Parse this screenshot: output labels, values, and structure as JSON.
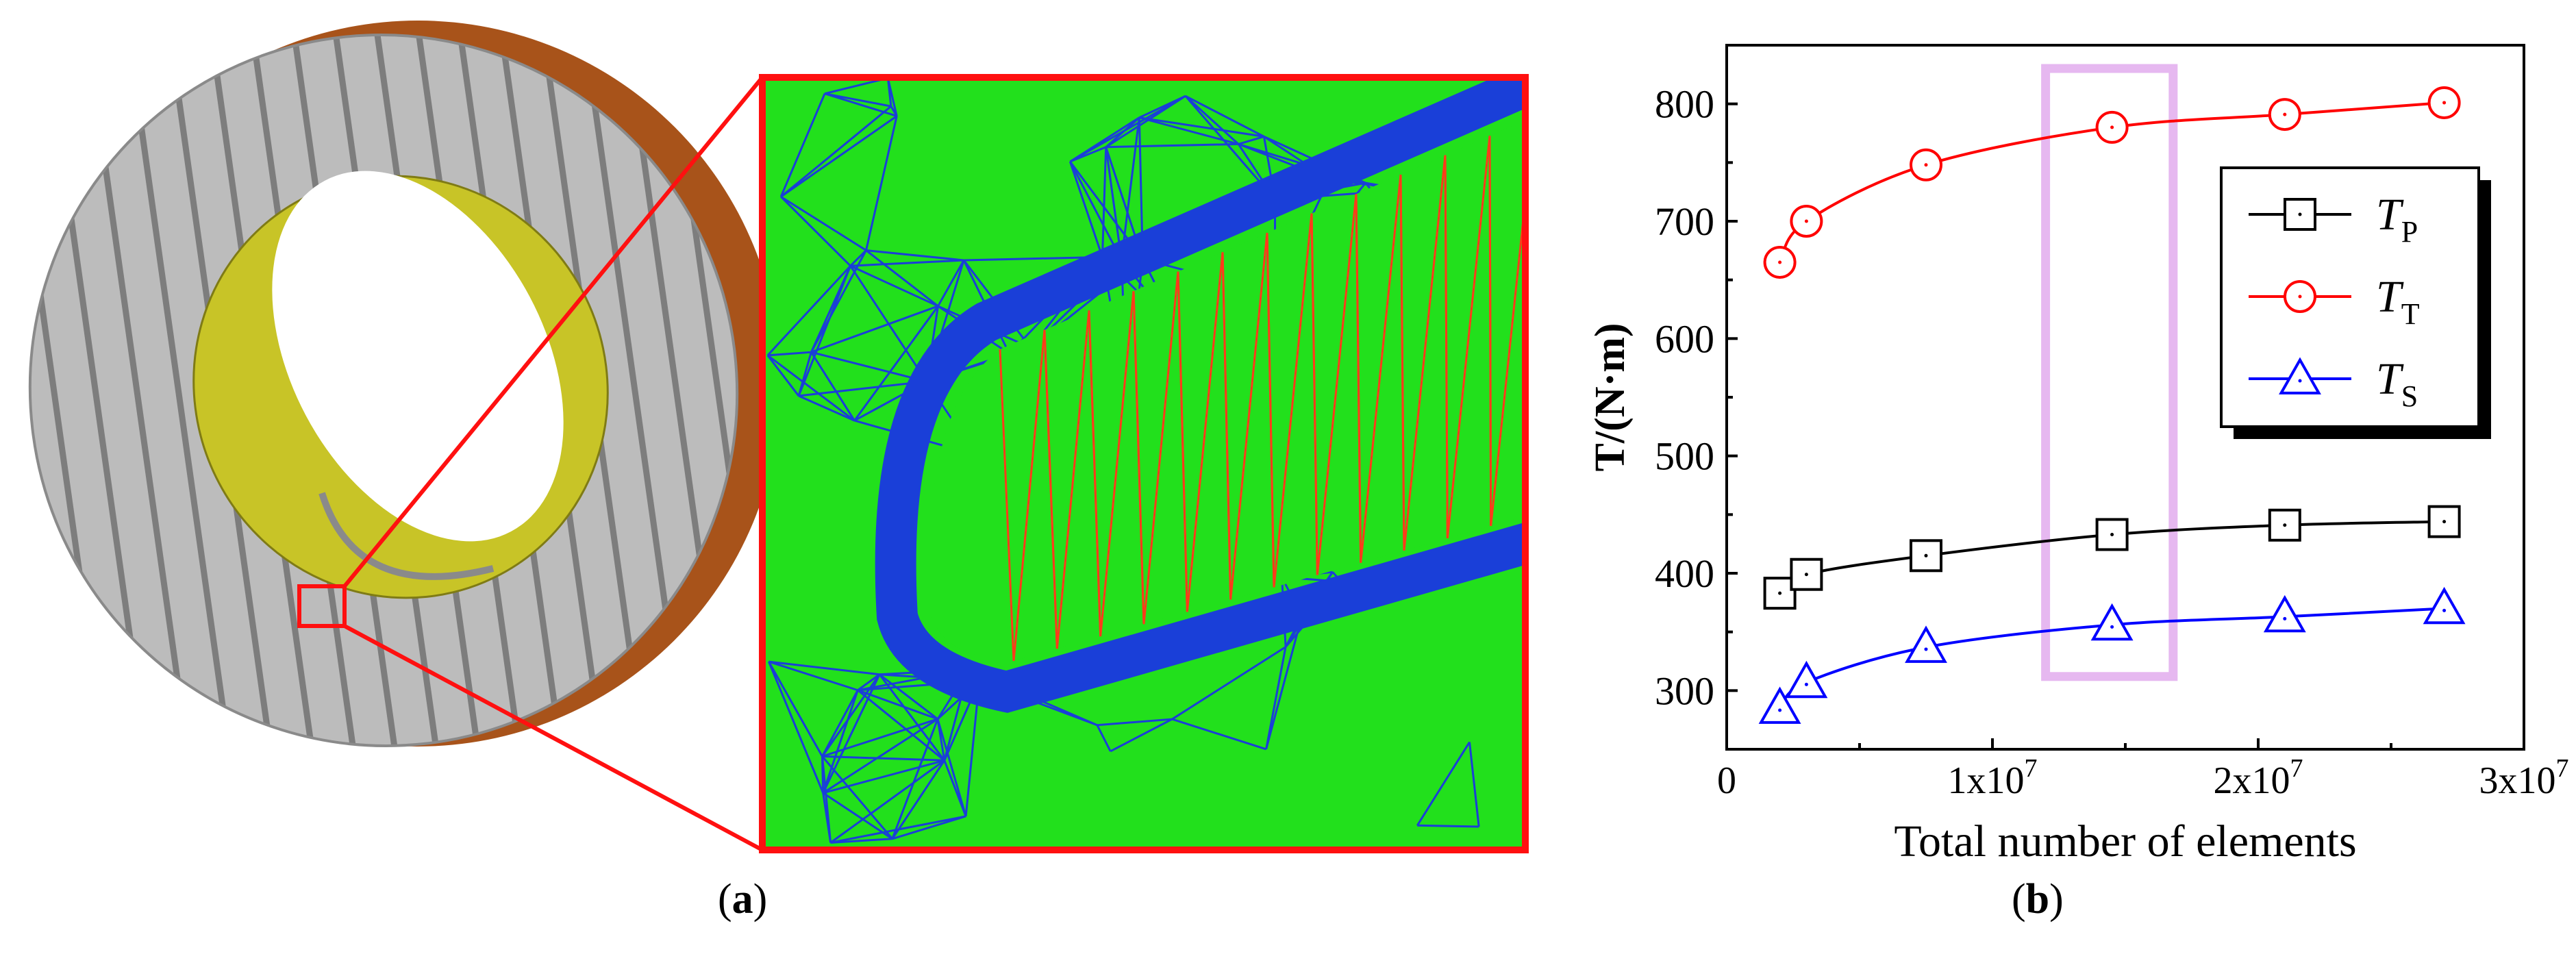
{
  "panels": {
    "a": {
      "caption_open": "(",
      "caption_letter": "a",
      "caption_close": ")"
    },
    "b": {
      "caption_open": "(",
      "caption_letter": "b",
      "caption_close": ")"
    }
  },
  "colors": {
    "mesh_green": "#22e01c",
    "mesh_blue": "#1a3fd8",
    "mesh_red": "#ff3b1a",
    "frame_red": "#ff1010",
    "torus_grey": "#b9b9b9",
    "torus_yellow": "#c8c427",
    "torus_brown": "#a8531a",
    "highlight": "#e6b8f0"
  },
  "chart_data": {
    "type": "line",
    "xlabel": "Total number of elements",
    "ylabel": "T/(N·m)",
    "xlim": [
      0,
      30000000
    ],
    "ylim": [
      250,
      850
    ],
    "xticks": [
      {
        "value": 0,
        "base": "0",
        "exp": ""
      },
      {
        "value": 10000000,
        "base": "1x10",
        "exp": "7"
      },
      {
        "value": 20000000,
        "base": "2x10",
        "exp": "7"
      },
      {
        "value": 30000000,
        "base": "3x10",
        "exp": "7"
      }
    ],
    "yticks": [
      300,
      400,
      500,
      600,
      700,
      800
    ],
    "highlight_x_range": [
      12000000,
      16800000
    ],
    "legend_position": "right",
    "series": [
      {
        "name": "T",
        "sub": "P",
        "color": "#000000",
        "marker": "square",
        "x": [
          2000000,
          3000000,
          7500000,
          14500000,
          21000000,
          27000000
        ],
        "y": [
          383,
          399,
          415,
          433,
          441,
          444
        ]
      },
      {
        "name": "T",
        "sub": "T",
        "color": "#ff0000",
        "marker": "circle",
        "x": [
          2000000,
          3000000,
          7500000,
          14500000,
          21000000,
          27000000
        ],
        "y": [
          665,
          700,
          748,
          780,
          791,
          801
        ]
      },
      {
        "name": "T",
        "sub": "S",
        "color": "#0000ff",
        "marker": "triangle",
        "x": [
          2000000,
          3000000,
          7500000,
          14500000,
          21000000,
          27000000
        ],
        "y": [
          285,
          307,
          337,
          356,
          363,
          370
        ]
      }
    ]
  }
}
